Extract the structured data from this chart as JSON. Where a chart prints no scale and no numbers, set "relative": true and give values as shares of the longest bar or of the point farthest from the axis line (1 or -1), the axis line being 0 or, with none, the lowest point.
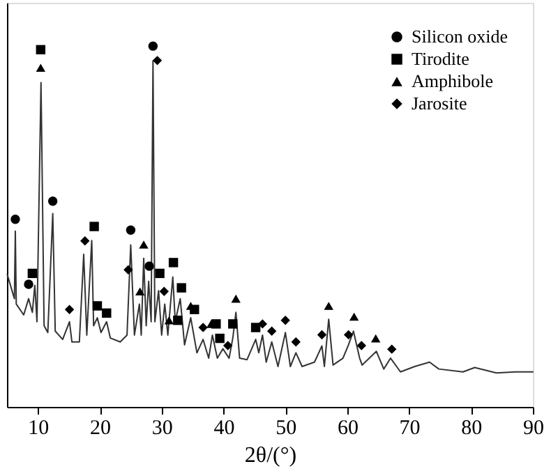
{
  "chart_data": {
    "type": "line",
    "xlabel": "2θ/(°)",
    "xlim": [
      5,
      90
    ],
    "xticks": [
      10,
      20,
      30,
      40,
      50,
      60,
      70,
      80,
      90
    ],
    "relative": true,
    "legend": "top right",
    "grid": false,
    "series": [
      {
        "color": "#333333",
        "marker": "none",
        "line_style": "solid",
        "x": [
          5.05,
          6.2,
          6.35,
          6.5,
          7.7,
          8.5,
          9.1,
          9.5,
          9.85,
          10.5,
          11,
          11.6,
          12.4,
          12.8,
          14,
          15.1,
          15.5,
          16.7,
          17.4,
          17.9,
          18.7,
          19,
          19.6,
          20.2,
          21.1,
          21.7,
          23.3,
          24.4,
          25,
          25.6,
          26.4,
          26.7,
          27.1,
          27.5,
          27.9,
          28.3,
          28.6,
          28.9,
          29.5,
          30,
          30.5,
          31,
          31.8,
          32.2,
          33,
          33.7,
          34.7,
          35.7,
          36.7,
          37.6,
          38.2,
          39,
          39.9,
          40.9,
          41.5,
          42,
          42.6,
          43.8,
          45.2,
          45.7,
          46.3,
          46.9,
          47.8,
          48.8,
          50,
          50.8,
          51.7,
          52.7,
          54.7,
          55.9,
          56.3,
          57,
          57.7,
          59.3,
          60.2,
          61.0,
          62,
          62.4,
          64.7,
          65.9,
          67,
          68.6,
          70.9,
          73.3,
          74.8,
          78.7,
          80.6,
          84.1,
          87.2,
          90
        ],
        "values": [
          0.367,
          0.3,
          0.487,
          0.285,
          0.255,
          0.3,
          0.262,
          0.337,
          0.236,
          0.899,
          0.225,
          0.206,
          0.536,
          0.21,
          0.187,
          0.236,
          0.18,
          0.18,
          0.423,
          0.199,
          0.461,
          0.225,
          0.247,
          0.206,
          0.236,
          0.191,
          0.18,
          0.199,
          0.449,
          0.199,
          0.285,
          0.199,
          0.412,
          0.225,
          0.348,
          0.236,
          0.959,
          0.236,
          0.322,
          0.199,
          0.285,
          0.199,
          0.36,
          0.236,
          0.3,
          0.172,
          0.247,
          0.15,
          0.187,
          0.135,
          0.199,
          0.135,
          0.161,
          0.135,
          0.191,
          0.262,
          0.135,
          0.131,
          0.187,
          0.15,
          0.199,
          0.124,
          0.18,
          0.112,
          0.206,
          0.112,
          0.15,
          0.112,
          0.124,
          0.169,
          0.112,
          0.243,
          0.116,
          0.135,
          0.172,
          0.21,
          0.135,
          0.116,
          0.154,
          0.105,
          0.135,
          0.097,
          0.112,
          0.124,
          0.105,
          0.097,
          0.109,
          0.094,
          0.097,
          0.097
        ]
      },
      {
        "type": "scatter",
        "name": "Silicon oxide",
        "color": "#000000",
        "marker": "circle",
        "x": [
          6.35,
          8.5,
          12.4,
          25.0,
          28.0,
          28.6
        ],
        "values": [
          0.52,
          0.34,
          0.57,
          0.49,
          0.39,
          1.0
        ]
      },
      {
        "type": "scatter",
        "name": "Tirodite",
        "color": "#000000",
        "marker": "square",
        "x": [
          9.1,
          10.45,
          19.1,
          19.6,
          21.1,
          29.7,
          31.9,
          32.6,
          33.2,
          35.3,
          38.8,
          39.4,
          41.5,
          45.2
        ],
        "values": [
          0.37,
          0.99,
          0.5,
          0.28,
          0.26,
          0.37,
          0.4,
          0.24,
          0.33,
          0.27,
          0.23,
          0.19,
          0.23,
          0.22
        ]
      },
      {
        "type": "scatter",
        "name": "Amphibole",
        "color": "#000000",
        "marker": "triangle",
        "x": [
          10.45,
          26.5,
          27.1,
          31.2,
          34.7,
          38.0,
          42.0,
          57.0,
          61.1,
          64.6
        ],
        "values": [
          0.94,
          0.32,
          0.45,
          0.24,
          0.28,
          0.23,
          0.3,
          0.28,
          0.25,
          0.19
        ]
      },
      {
        "type": "scatter",
        "name": "Jarosite",
        "color": "#000000",
        "marker": "diamond",
        "x": [
          15.1,
          17.6,
          24.6,
          29.3,
          30.4,
          36.7,
          40.7,
          46.3,
          47.8,
          50.0,
          51.7,
          55.9,
          60.2,
          62.3,
          67.2
        ],
        "values": [
          0.27,
          0.46,
          0.38,
          0.96,
          0.32,
          0.22,
          0.17,
          0.23,
          0.21,
          0.24,
          0.18,
          0.2,
          0.2,
          0.17,
          0.16
        ]
      }
    ]
  }
}
